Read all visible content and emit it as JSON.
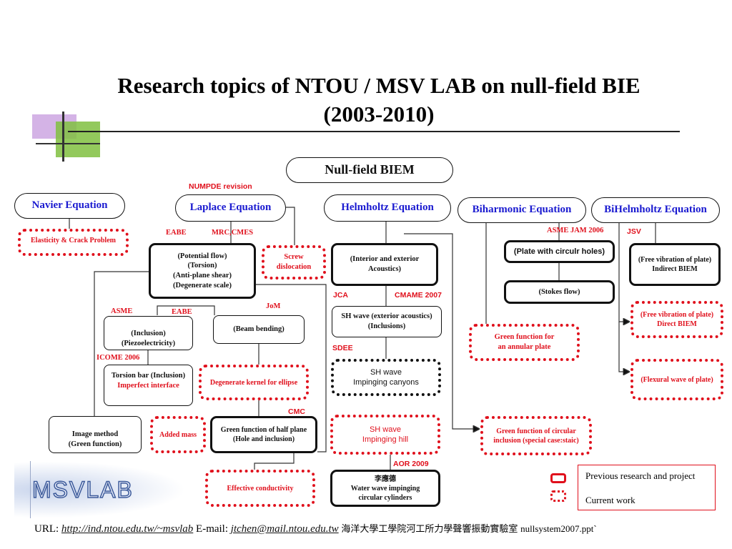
{
  "title": {
    "line1": "Research topics of NTOU / MSV LAB on null-field BIE",
    "line2": "(2003-2010)"
  },
  "root": "Null-field BIEM",
  "equations": {
    "navier": "Navier Equation",
    "laplace": "Laplace Equation",
    "helmholtz": "Helmholtz Equation",
    "biharmonic": "Biharmonic Equation",
    "bihelmholtz": "BiHelmholtz Equation"
  },
  "labels": {
    "numpde": "NUMPDE revision",
    "eabe1": "EABE",
    "mrc": "MRC,CMES",
    "asme_jam": "ASME JAM 2006",
    "jsv": "JSV",
    "asme": "ASME",
    "eabe2": "EABE",
    "jom": "JoM",
    "jca": "JCA",
    "cmame": "CMAME 2007",
    "sdee": "SDEE",
    "icome": "ICOME 2006",
    "cmc": "CMC",
    "aor": "AOR 2009"
  },
  "topics": {
    "elasticity": "Elasticity & Crack Problem",
    "potential": "(Potential flow)\n(Torsion)\n(Anti-plane shear)\n(Degenerate scale)",
    "screw": "Screw\ndislocation",
    "acoustics": "(Interior and exterior\nAcoustics)",
    "plate_holes": "(Plate with circulr holes)",
    "stokes": "(Stokes flow)",
    "free_indirect": "(Free vibration of plate)\nIndirect BIEM",
    "inclusion": "(Inclusion)\n(Piezoelectricity)",
    "beam": "(Beam bending)",
    "sh_ext": "SH wave (exterior acoustics)\n(Inclusions)",
    "free_direct": "(Free vibration of plate)\nDirect BIEM",
    "annular": "Green function for\nan annular plate",
    "torsion_bar": "Torsion bar  (Inclusion)",
    "imperfect": "Imperfect interface",
    "degenerate": "Degenerate kernel for ellipse",
    "canyons": "SH wave\nImpinging canyons",
    "flexural": "(Flexural wave of plate)",
    "image": "Image method\n(Green function)",
    "added_mass": "Added mass",
    "half_plane": "Green function of half plane\n(Hole and inclusion)",
    "hill": "SH wave\nImpinging hill",
    "circular_incl": "Green function of circular\ninclusion (special case:staic)",
    "conductivity": "Effective conductivity",
    "water_author": "李應德",
    "water": "Water wave impinging\ncircular cylinders"
  },
  "legend": {
    "previous": "Previous research and project",
    "current": "Current work"
  },
  "logo": "MSVLAB",
  "footer": {
    "url_label": "URL:",
    "url": "http://ind.ntou.edu.tw/~msvlab",
    "email_label": "E-mail:",
    "email": "jtchen@mail.ntou.edu.tw",
    "dept": "海洋大學工學院河工所力學聲響振動實驗室",
    "file": "nullsystem2007.ppt`"
  }
}
